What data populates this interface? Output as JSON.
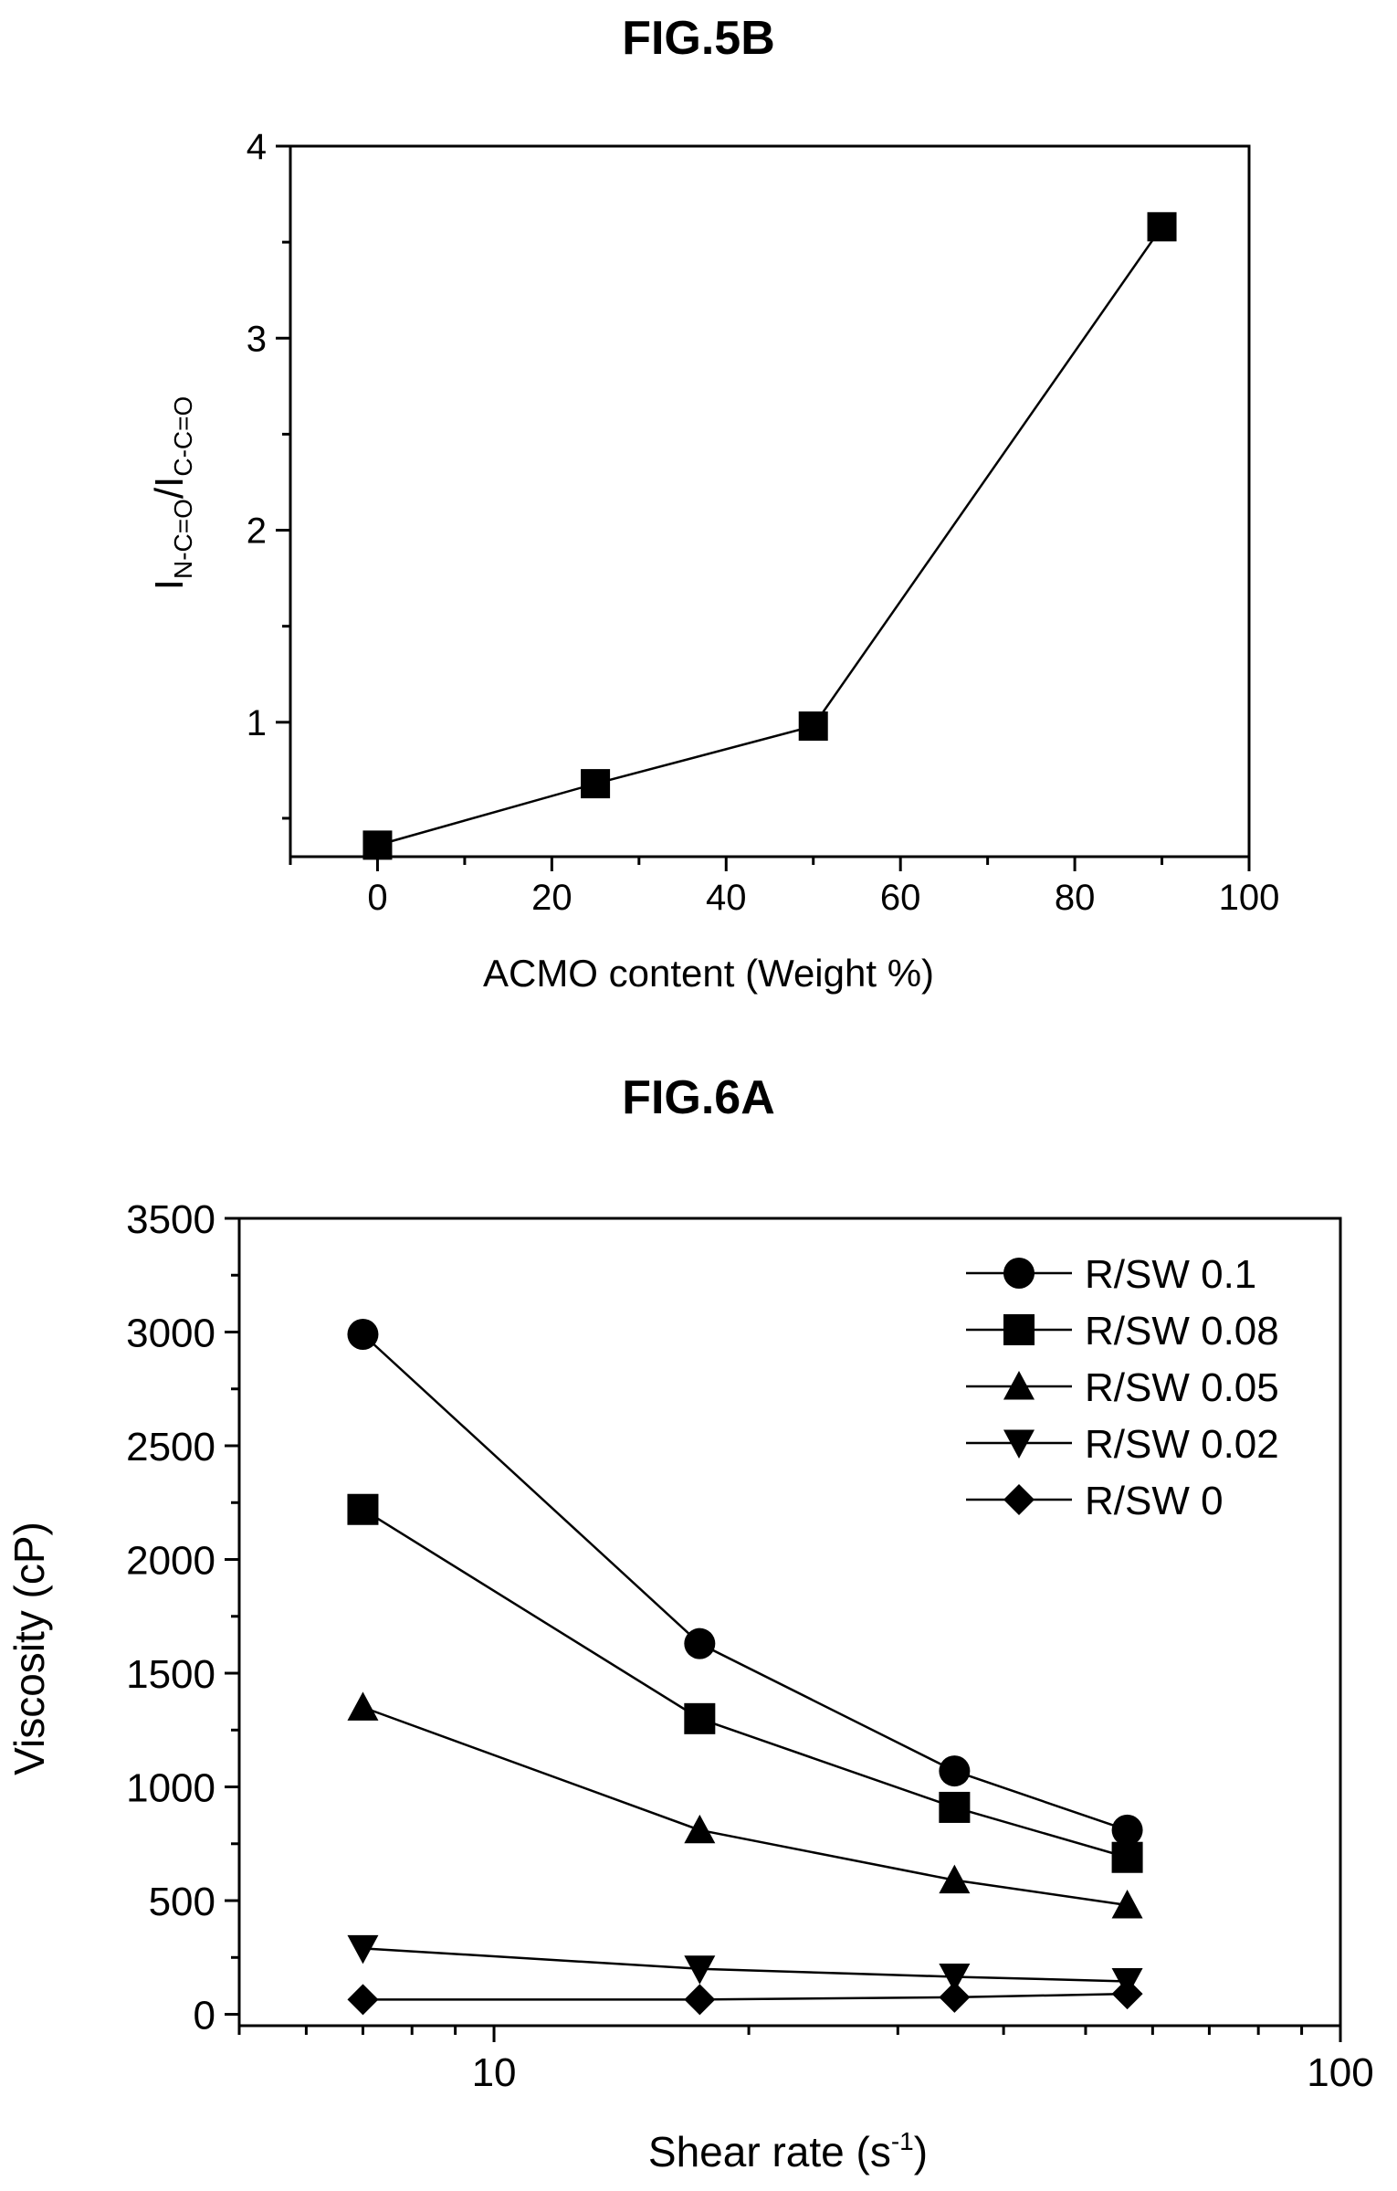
{
  "chart_data": [
    {
      "type": "line",
      "title": "FIG.5B",
      "xlabel": "ACMO content (Weight %)",
      "ylabel_main": "I",
      "ylabel_sub1": "N-C=O",
      "ylabel_sep": "/I",
      "ylabel_sub2": "C-C=O",
      "xlim": [
        -10,
        100
      ],
      "ylim": [
        0.3,
        4
      ],
      "xticks": [
        0,
        20,
        40,
        60,
        80,
        100
      ],
      "yticks": [
        1,
        2,
        3,
        4
      ],
      "series": [
        {
          "marker": "square",
          "x": [
            0,
            25,
            50,
            90
          ],
          "y": [
            0.36,
            0.68,
            0.98,
            3.58
          ]
        }
      ]
    },
    {
      "type": "line",
      "title": "FIG.6A",
      "xlabel": "Shear rate (s",
      "xlabel_sup": "-1",
      "xlabel_end": ")",
      "ylabel": "Viscosity (cP)",
      "xscale": "log",
      "xlim": [
        5,
        100
      ],
      "ylim": [
        -50,
        3500
      ],
      "xticks": [
        10,
        100
      ],
      "yticks": [
        0,
        500,
        1000,
        1500,
        2000,
        2500,
        3000,
        3500
      ],
      "legend_position": "top-right",
      "x": [
        7,
        17.5,
        35,
        56
      ],
      "series": [
        {
          "name": "R/SW 0.1",
          "marker": "circle",
          "values": [
            2990,
            1630,
            1070,
            810
          ]
        },
        {
          "name": "R/SW 0.08",
          "marker": "square",
          "values": [
            2220,
            1300,
            910,
            690
          ]
        },
        {
          "name": "R/SW 0.05",
          "marker": "triangle-up",
          "values": [
            1350,
            810,
            590,
            480
          ]
        },
        {
          "name": "R/SW 0.02",
          "marker": "triangle-down",
          "values": [
            290,
            200,
            165,
            145
          ]
        },
        {
          "name": "R/SW 0",
          "marker": "diamond",
          "values": [
            65,
            65,
            75,
            90
          ]
        }
      ]
    }
  ]
}
